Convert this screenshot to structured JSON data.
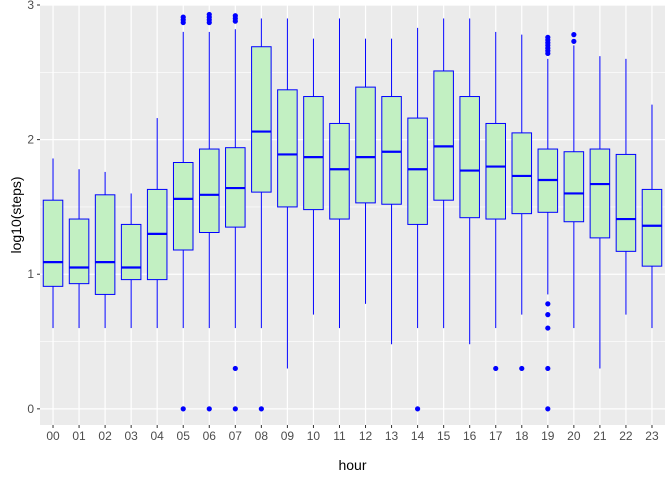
{
  "chart_data": {
    "type": "boxplot",
    "xlabel": "hour",
    "ylabel": "log10(steps)",
    "ylim": [
      -0.12,
      3.0
    ],
    "y_ticks": [
      "0",
      "1",
      "2",
      "3"
    ],
    "y_tick_values": [
      0,
      1,
      2,
      3
    ],
    "grid": true,
    "colors": {
      "panel": "#ebebeb",
      "grid": "#ffffff",
      "box_fill": "#c2f0c2",
      "box_line": "#0000ff",
      "median": "#0000ff",
      "outlier": "#0000ff",
      "tick_text": "#4d4d4d"
    },
    "categories": [
      "00",
      "01",
      "02",
      "03",
      "04",
      "05",
      "06",
      "07",
      "08",
      "09",
      "10",
      "11",
      "12",
      "13",
      "14",
      "15",
      "16",
      "17",
      "18",
      "19",
      "20",
      "21",
      "22",
      "23"
    ],
    "boxes": [
      {
        "label": "00",
        "min": 0.6,
        "q1": 0.91,
        "median": 1.09,
        "q3": 1.55,
        "max": 1.86,
        "outliers": []
      },
      {
        "label": "01",
        "min": 0.6,
        "q1": 0.93,
        "median": 1.05,
        "q3": 1.41,
        "max": 1.78,
        "outliers": []
      },
      {
        "label": "02",
        "min": 0.6,
        "q1": 0.85,
        "median": 1.09,
        "q3": 1.59,
        "max": 1.76,
        "outliers": []
      },
      {
        "label": "03",
        "min": 0.6,
        "q1": 0.96,
        "median": 1.05,
        "q3": 1.37,
        "max": 1.6,
        "outliers": []
      },
      {
        "label": "04",
        "min": 0.6,
        "q1": 0.96,
        "median": 1.3,
        "q3": 1.63,
        "max": 2.16,
        "outliers": []
      },
      {
        "label": "05",
        "min": 0.6,
        "q1": 1.18,
        "median": 1.56,
        "q3": 1.83,
        "max": 2.8,
        "outliers": [
          0,
          2.87,
          2.89,
          2.91
        ]
      },
      {
        "label": "06",
        "min": 0.6,
        "q1": 1.31,
        "median": 1.59,
        "q3": 1.93,
        "max": 2.8,
        "outliers": [
          0,
          2.87,
          2.89,
          2.91,
          2.93
        ]
      },
      {
        "label": "07",
        "min": 0.6,
        "q1": 1.35,
        "median": 1.64,
        "q3": 1.94,
        "max": 2.82,
        "outliers": [
          0,
          0.3,
          2.88,
          2.9,
          2.92
        ]
      },
      {
        "label": "08",
        "min": 0.6,
        "q1": 1.61,
        "median": 2.06,
        "q3": 2.69,
        "max": 2.9,
        "outliers": [
          0
        ]
      },
      {
        "label": "09",
        "min": 0.3,
        "q1": 1.5,
        "median": 1.89,
        "q3": 2.37,
        "max": 2.9,
        "outliers": []
      },
      {
        "label": "10",
        "min": 0.7,
        "q1": 1.48,
        "median": 1.87,
        "q3": 2.32,
        "max": 2.75,
        "outliers": []
      },
      {
        "label": "11",
        "min": 0.6,
        "q1": 1.41,
        "median": 1.78,
        "q3": 2.12,
        "max": 2.9,
        "outliers": []
      },
      {
        "label": "12",
        "min": 0.78,
        "q1": 1.53,
        "median": 1.87,
        "q3": 2.39,
        "max": 2.75,
        "outliers": []
      },
      {
        "label": "13",
        "min": 0.48,
        "q1": 1.52,
        "median": 1.91,
        "q3": 2.32,
        "max": 2.75,
        "outliers": []
      },
      {
        "label": "14",
        "min": 0.6,
        "q1": 1.37,
        "median": 1.78,
        "q3": 2.16,
        "max": 2.83,
        "outliers": [
          0
        ]
      },
      {
        "label": "15",
        "min": 0.6,
        "q1": 1.55,
        "median": 1.95,
        "q3": 2.51,
        "max": 2.9,
        "outliers": []
      },
      {
        "label": "16",
        "min": 0.48,
        "q1": 1.42,
        "median": 1.77,
        "q3": 2.32,
        "max": 2.9,
        "outliers": []
      },
      {
        "label": "17",
        "min": 0.6,
        "q1": 1.41,
        "median": 1.8,
        "q3": 2.12,
        "max": 2.8,
        "outliers": [
          0.3
        ]
      },
      {
        "label": "18",
        "min": 0.7,
        "q1": 1.45,
        "median": 1.73,
        "q3": 2.05,
        "max": 2.78,
        "outliers": [
          0.3
        ]
      },
      {
        "label": "19",
        "min": 0.85,
        "q1": 1.46,
        "median": 1.7,
        "q3": 1.93,
        "max": 2.6,
        "outliers": [
          0,
          0.3,
          0.6,
          0.7,
          0.78,
          2.64,
          2.66,
          2.68,
          2.7,
          2.72,
          2.74,
          2.76
        ]
      },
      {
        "label": "20",
        "min": 0.6,
        "q1": 1.39,
        "median": 1.6,
        "q3": 1.91,
        "max": 2.7,
        "outliers": [
          2.73,
          2.78
        ]
      },
      {
        "label": "21",
        "min": 0.3,
        "q1": 1.27,
        "median": 1.67,
        "q3": 1.93,
        "max": 2.62,
        "outliers": []
      },
      {
        "label": "22",
        "min": 0.7,
        "q1": 1.17,
        "median": 1.41,
        "q3": 1.89,
        "max": 2.6,
        "outliers": []
      },
      {
        "label": "23",
        "min": 0.6,
        "q1": 1.06,
        "median": 1.36,
        "q3": 1.63,
        "max": 2.26,
        "outliers": []
      }
    ]
  }
}
